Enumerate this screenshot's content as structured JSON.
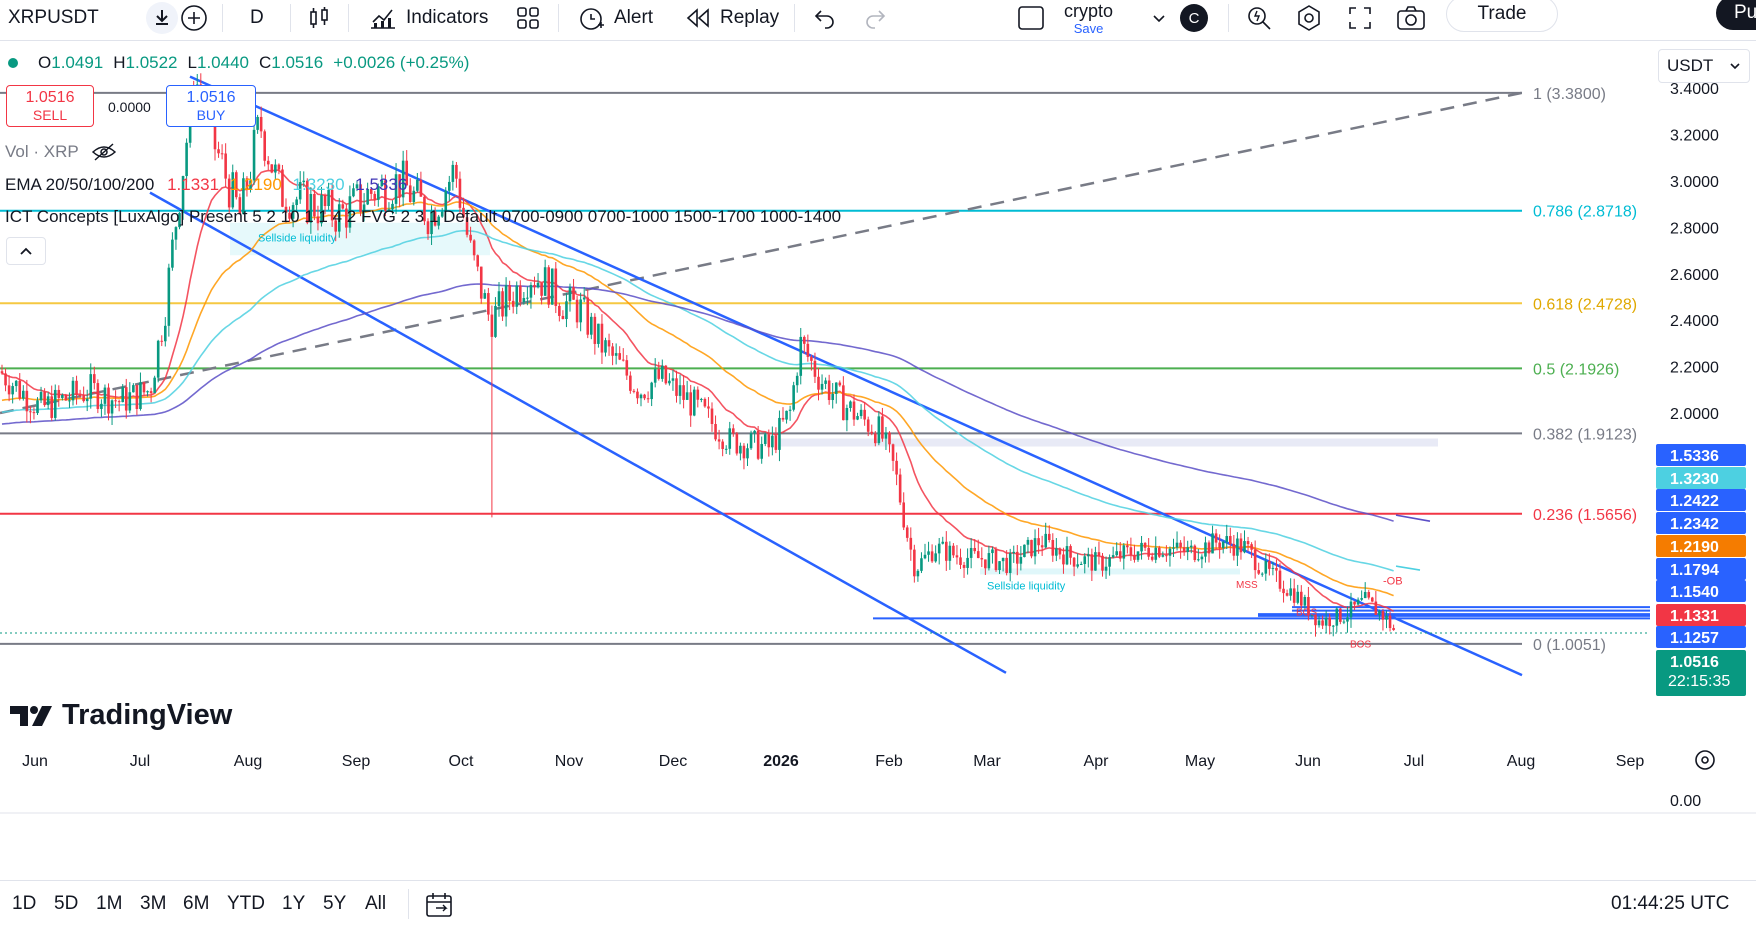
{
  "toolbar": {
    "symbol": "XRPUSDT",
    "interval": "D",
    "indicators": "Indicators",
    "alert": "Alert",
    "replay": "Replay",
    "layout_name": "crypto",
    "layout_sub": "Save",
    "avatar": "C",
    "trade": "Trade",
    "publish": "Pu"
  },
  "legend": {
    "o_label": "O",
    "o": "1.0491",
    "h_label": "H",
    "h": "1.0522",
    "l_label": "L",
    "l": "1.0440",
    "c_label": "C",
    "c": "1.0516",
    "change": "+0.0026 (+0.25%)",
    "sell_price": "1.0516",
    "sell_label": "SELL",
    "spread": "0.0000",
    "buy_price": "1.0516",
    "buy_label": "BUY",
    "vol": "Vol · XRP",
    "ema_label": "EMA 20/50/100/200",
    "ema_values": [
      "1.1331",
      "1.2190",
      "1.3230",
      "1.5336"
    ],
    "ict": "ICT Concepts [LuxAlgo] Present 5 2 10 1 1 4 2 FVG 2 3 1 Default 0700-0900 0700-1000 1500-1700 1000-1400"
  },
  "currency": "USDT",
  "chart_data": {
    "type": "candlestick",
    "symbol": "XRPUSDT",
    "timeframe": "1D",
    "x_labels": [
      "Jun",
      "Jul",
      "Aug",
      "Sep",
      "Oct",
      "Nov",
      "Dec",
      "2026",
      "Feb",
      "Mar",
      "Apr",
      "May",
      "Jun",
      "Jul",
      "Aug",
      "Sep"
    ],
    "y_ticks": [
      "3.4000",
      "3.2000",
      "3.0000",
      "2.8000",
      "2.6000",
      "2.4000",
      "2.2000",
      "2.0000",
      "0.00"
    ],
    "fib_levels": [
      {
        "label": "1 (3.3800)",
        "value": 3.38,
        "color": "#787b86"
      },
      {
        "label": "0.786 (2.8718)",
        "value": 2.8718,
        "color": "#00bcd4"
      },
      {
        "label": "0.618 (2.4728)",
        "value": 2.4728,
        "color": "#f5c842"
      },
      {
        "label": "0.5 (2.1926)",
        "value": 2.1926,
        "color": "#4caf50"
      },
      {
        "label": "0.382 (1.9123)",
        "value": 1.9123,
        "color": "#787b86"
      },
      {
        "label": "0.236 (1.5656)",
        "value": 1.5656,
        "color": "#f23645"
      },
      {
        "label": "0 (1.0051)",
        "value": 1.0051,
        "color": "#787b86"
      }
    ],
    "price_tags": [
      {
        "value": "1.5336",
        "color": "#2962ff"
      },
      {
        "value": "1.3230",
        "color": "#4dd0e1"
      },
      {
        "value": "1.2422",
        "color": "#2962ff"
      },
      {
        "value": "1.2342",
        "color": "#2962ff"
      },
      {
        "value": "1.2190",
        "color": "#f57c00"
      },
      {
        "value": "1.1794",
        "color": "#2962ff"
      },
      {
        "value": "1.1540",
        "color": "#2962ff"
      },
      {
        "value": "1.1331",
        "color": "#f23645"
      },
      {
        "value": "1.1257",
        "color": "#2962ff"
      },
      {
        "value": "1.0516",
        "color": "#089981"
      }
    ],
    "countdown": "22:15:35",
    "annotations": [
      "Sellside liquidity",
      "Sellside liquidity",
      "MSS",
      "BOS",
      "BOS",
      "-OB"
    ],
    "series": [
      {
        "name": "EMA 20",
        "last": 1.1331,
        "color": "#f23645"
      },
      {
        "name": "EMA 50",
        "last": 1.219,
        "color": "#ff9800"
      },
      {
        "name": "EMA 100",
        "last": 1.323,
        "color": "#4dd0e1"
      },
      {
        "name": "EMA 200",
        "last": 1.5336,
        "color": "#5b4fc7"
      }
    ],
    "last_price": 1.0516
  },
  "bottom": {
    "ranges": [
      "1D",
      "5D",
      "1M",
      "3M",
      "6M",
      "YTD",
      "1Y",
      "5Y",
      "All"
    ],
    "clock": "01:44:25 UTC"
  },
  "watermark": "TradingView"
}
